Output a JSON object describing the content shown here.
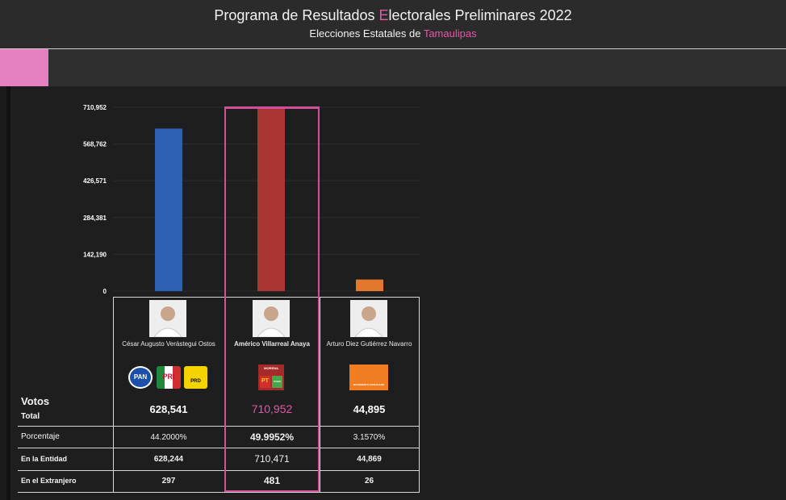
{
  "header": {
    "title_pre": "Programa de Resultados ",
    "title_accent": "E",
    "title_post": "lectorales Preliminares 2022",
    "subtitle_pre": "Elecciones Estatales de ",
    "subtitle_accent": "Tamaulipas"
  },
  "colors": {
    "accent": "#e05aa8",
    "menu_tab": "#e57fc0",
    "bar_blue": "#2f5fb3",
    "bar_red": "#a93535",
    "bar_orange": "#e2782c"
  },
  "chart_data": {
    "type": "bar",
    "categories": [
      "César Augusto Verástegui Ostos",
      "Américo Villarreal Anaya",
      "Arturo Diez Gutiérrez Navarro"
    ],
    "values": [
      628541,
      710952,
      44895
    ],
    "yticks": [
      "710,952",
      "568,762",
      "426,571",
      "284,381",
      "142,190",
      "0"
    ],
    "ylim": [
      0,
      710952
    ],
    "highlighted_index": 1
  },
  "table": {
    "row_labels": {
      "votos": "Votos",
      "total": "Total",
      "porcentaje": "Porcentaje",
      "entidad": "En la Entidad",
      "extranjero": "En el Extranjero"
    },
    "candidates": [
      {
        "name": "César Augusto Verástegui Ostos",
        "logos": [
          "PAN",
          "PRI",
          "PRD"
        ],
        "votos_total": "628,541",
        "porcentaje": "44.2000%",
        "entidad": "628,244",
        "extranjero": "297"
      },
      {
        "name": "Américo Villarreal Anaya",
        "logos": [
          "MORENA",
          "PT",
          "PVEM"
        ],
        "votos_total": "710,952",
        "porcentaje": "49.9952%",
        "entidad": "710,471",
        "extranjero": "481"
      },
      {
        "name": "Arturo Diez Gutiérrez Navarro",
        "logos": [
          "MOVIMIENTO CIUDADANO"
        ],
        "votos_total": "44,895",
        "porcentaje": "3.1570%",
        "entidad": "44,869",
        "extranjero": "26"
      }
    ]
  }
}
